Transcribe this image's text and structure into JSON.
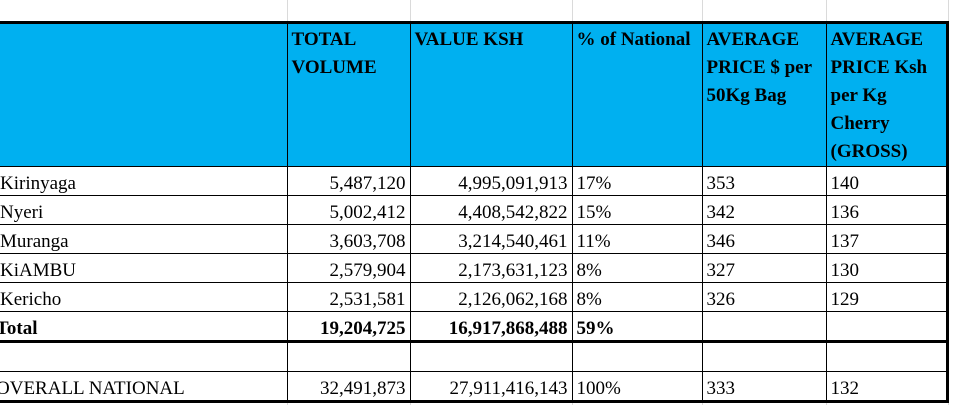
{
  "table": {
    "headers": [
      "",
      "TOTAL VOLUME",
      "VALUE KSH",
      "% of National",
      "AVERAGE PRICE $ per 50Kg Bag",
      "AVERAGE PRICE Ksh per Kg Cherry (GROSS)"
    ],
    "header_color": "#00b0f0",
    "rows": [
      [
        "Kirinyaga",
        "5,487,120",
        "4,995,091,913",
        "17%",
        "353",
        "140"
      ],
      [
        "Nyeri",
        "5,002,412",
        "4,408,542,822",
        "15%",
        "342",
        "136"
      ],
      [
        "Muranga",
        "3,603,708",
        "3,214,540,461",
        "11%",
        "346",
        "137"
      ],
      [
        "KiAMBU",
        "2,579,904",
        "2,173,631,123",
        "8%",
        "327",
        "130"
      ],
      [
        "Kericho",
        "2,531,581",
        "2,126,062,168",
        "8%",
        "326",
        "129"
      ]
    ],
    "total": [
      "Total",
      "19,204,725",
      "16,917,868,488",
      "59%",
      "",
      ""
    ],
    "overall": [
      "OVERALL NATIONAL",
      "32,491,873",
      "27,911,416,143",
      "100%",
      "333",
      "132"
    ]
  }
}
